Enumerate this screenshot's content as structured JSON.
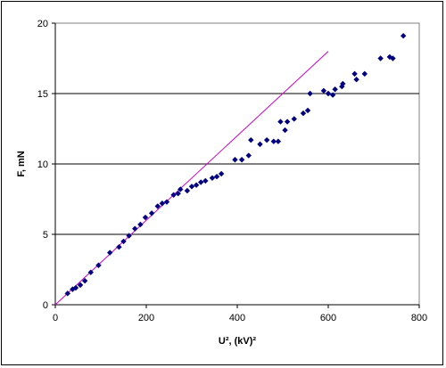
{
  "chart_data": {
    "type": "scatter",
    "xlabel": "U², (kV)²",
    "ylabel": "F, mN",
    "xlim": [
      0,
      800
    ],
    "ylim": [
      0,
      20
    ],
    "xticks": [
      0,
      200,
      400,
      600,
      800
    ],
    "yticks": [
      0,
      5,
      10,
      15,
      20
    ],
    "grid": "horizontal major gridlines",
    "legend": "none",
    "series": [
      {
        "type": "scatter",
        "marker": "diamond",
        "color": "#000080",
        "points": [
          [
            27,
            0.8
          ],
          [
            38,
            1.1
          ],
          [
            45,
            1.2
          ],
          [
            55,
            1.4
          ],
          [
            65,
            1.7
          ],
          [
            78,
            2.3
          ],
          [
            95,
            2.8
          ],
          [
            120,
            3.7
          ],
          [
            140,
            4.1
          ],
          [
            150,
            4.5
          ],
          [
            162,
            4.9
          ],
          [
            175,
            5.4
          ],
          [
            187,
            5.7
          ],
          [
            198,
            6.2
          ],
          [
            212,
            6.5
          ],
          [
            225,
            7.0
          ],
          [
            235,
            7.2
          ],
          [
            245,
            7.3
          ],
          [
            260,
            7.8
          ],
          [
            270,
            7.9
          ],
          [
            275,
            8.2
          ],
          [
            290,
            8.1
          ],
          [
            300,
            8.4
          ],
          [
            310,
            8.5
          ],
          [
            320,
            8.7
          ],
          [
            330,
            8.8
          ],
          [
            345,
            9.0
          ],
          [
            355,
            9.1
          ],
          [
            365,
            9.3
          ],
          [
            395,
            10.3
          ],
          [
            410,
            10.3
          ],
          [
            425,
            10.6
          ],
          [
            430,
            11.7
          ],
          [
            450,
            11.4
          ],
          [
            465,
            11.7
          ],
          [
            480,
            11.6
          ],
          [
            490,
            11.6
          ],
          [
            495,
            13.0
          ],
          [
            505,
            12.4
          ],
          [
            510,
            13.0
          ],
          [
            525,
            13.2
          ],
          [
            545,
            13.6
          ],
          [
            555,
            13.8
          ],
          [
            560,
            15.0
          ],
          [
            590,
            15.2
          ],
          [
            600,
            15.0
          ],
          [
            610,
            14.9
          ],
          [
            615,
            15.3
          ],
          [
            630,
            15.5
          ],
          [
            632,
            15.7
          ],
          [
            658,
            16.4
          ],
          [
            662,
            16.0
          ],
          [
            680,
            16.4
          ],
          [
            715,
            17.5
          ],
          [
            735,
            17.6
          ],
          [
            742,
            17.5
          ],
          [
            765,
            19.1
          ]
        ]
      },
      {
        "type": "line",
        "color": "#cc00cc",
        "points": [
          [
            0,
            0
          ],
          [
            600,
            18.0
          ]
        ]
      }
    ]
  }
}
